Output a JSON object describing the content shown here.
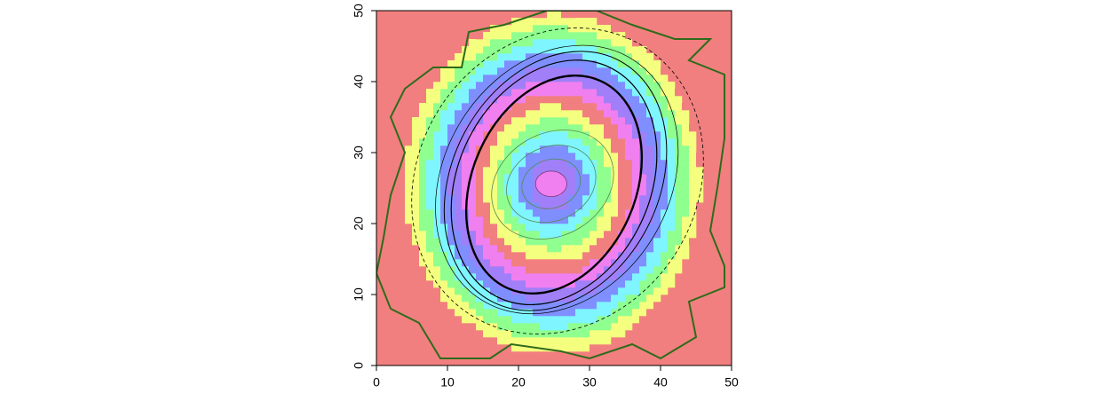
{
  "chart_data": {
    "type": "image",
    "xlim": [
      0,
      50
    ],
    "ylim": [
      0,
      50
    ],
    "xticks": [
      0,
      10,
      20,
      30,
      40,
      50
    ],
    "yticks": [
      0,
      10,
      20,
      30,
      40,
      50
    ],
    "background": "#f17f7f",
    "image": {
      "center": [
        24.8,
        25.6
      ],
      "scale": [
        1.0,
        1.15
      ],
      "band": 1.6,
      "extent": 21,
      "palette": [
        "#f07ff0",
        "#a07ff8",
        "#7f8fff",
        "#7ff5ff",
        "#8fff8f",
        "#f5ff7f",
        "#f17f7f"
      ]
    },
    "contour": {
      "color": "#2e6b1a",
      "points": [
        [
          2,
          8
        ],
        [
          6,
          6
        ],
        [
          9,
          1
        ],
        [
          16,
          1
        ],
        [
          19,
          3
        ],
        [
          26,
          2
        ],
        [
          30,
          1
        ],
        [
          36,
          3
        ],
        [
          40,
          1
        ],
        [
          45,
          4
        ],
        [
          44,
          9
        ],
        [
          49,
          11
        ],
        [
          49,
          14
        ],
        [
          47,
          19
        ],
        [
          48,
          25
        ],
        [
          49,
          32
        ],
        [
          49,
          41
        ],
        [
          44,
          43
        ],
        [
          47,
          46
        ],
        [
          42,
          46
        ],
        [
          36,
          48
        ],
        [
          31,
          50
        ],
        [
          24,
          50
        ],
        [
          18,
          48
        ],
        [
          13,
          47
        ],
        [
          12,
          42
        ],
        [
          8,
          42
        ],
        [
          4,
          39
        ],
        [
          2,
          35
        ],
        [
          4,
          30
        ],
        [
          2,
          24
        ],
        [
          1,
          18
        ],
        [
          0,
          13
        ],
        [
          2,
          8
        ]
      ]
    },
    "ellipses": [
      {
        "cx": 24.6,
        "cy": 25.6,
        "a": 2.2,
        "b": 1.8,
        "angle": 0,
        "stroke": "#7a3a7a",
        "width": 0.8,
        "fill": "#f07ff0",
        "dash": false
      },
      {
        "cx": 24.6,
        "cy": 25.6,
        "a": 4.2,
        "b": 3.4,
        "angle": 20,
        "stroke": "#558855",
        "width": 0.8,
        "fill": "none",
        "dash": false
      },
      {
        "cx": 24.6,
        "cy": 25.6,
        "a": 6.5,
        "b": 5.2,
        "angle": 25,
        "stroke": "#558855",
        "width": 0.8,
        "fill": "none",
        "dash": false
      },
      {
        "cx": 24.8,
        "cy": 25.5,
        "a": 9.0,
        "b": 7.2,
        "angle": 30,
        "stroke": "#558855",
        "width": 0.8,
        "fill": "none",
        "dash": false
      },
      {
        "cx": 25.0,
        "cy": 25.5,
        "a": 16.0,
        "b": 11.5,
        "angle": 66,
        "stroke": "#000000",
        "width": 2.4,
        "fill": "none",
        "dash": false
      },
      {
        "cx": 25.0,
        "cy": 25.8,
        "a": 18.0,
        "b": 13.5,
        "angle": 64,
        "stroke": "#000000",
        "width": 1.2,
        "fill": "none",
        "dash": false
      },
      {
        "cx": 25.2,
        "cy": 26.0,
        "a": 19.2,
        "b": 14.5,
        "angle": 62,
        "stroke": "#000000",
        "width": 1.0,
        "fill": "none",
        "dash": false
      },
      {
        "cx": 25.4,
        "cy": 26.2,
        "a": 20.0,
        "b": 15.8,
        "angle": 58,
        "stroke": "#000000",
        "width": 0.7,
        "fill": "none",
        "dash": false
      },
      {
        "cx": 25.5,
        "cy": 26.0,
        "a": 22.5,
        "b": 19.5,
        "angle": 55,
        "stroke": "#000000",
        "width": 0.8,
        "fill": "none",
        "dash": true
      }
    ]
  }
}
